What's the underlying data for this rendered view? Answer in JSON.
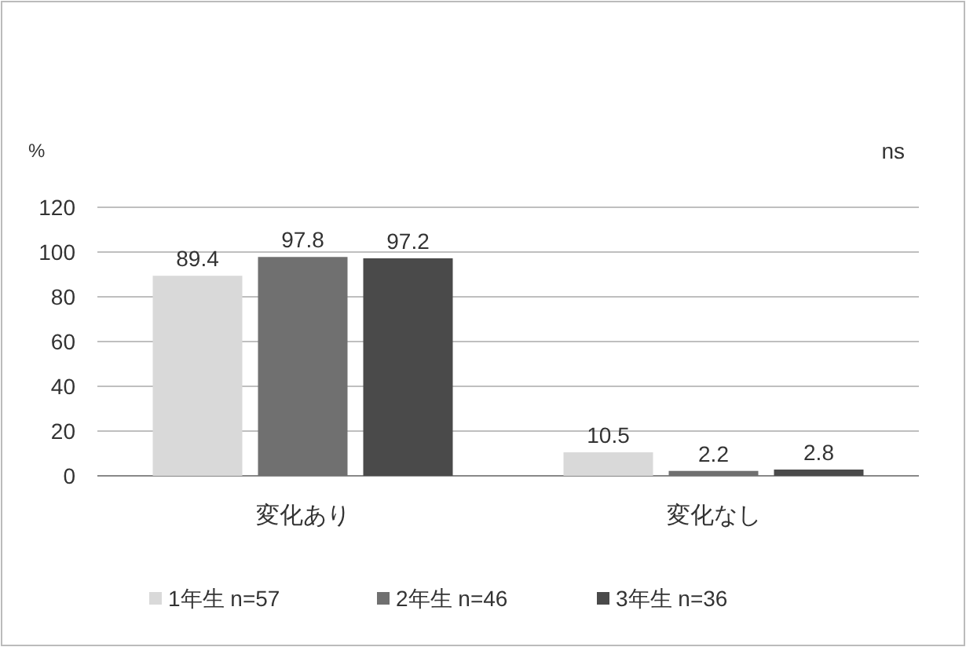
{
  "chart_data": {
    "type": "bar",
    "ylabel": "%",
    "annotations": [
      "ns"
    ],
    "categories": [
      "変化あり",
      "変化なし"
    ],
    "series": [
      {
        "name": "1年生 n=57",
        "color": "#d9d9d9",
        "values": [
          89.4,
          10.5
        ]
      },
      {
        "name": "2年生 n=46",
        "color": "#707070",
        "values": [
          97.8,
          2.2
        ]
      },
      {
        "name": "3年生 n=36",
        "color": "#4a4a4a",
        "values": [
          97.2,
          2.8
        ]
      }
    ],
    "ylim": [
      0,
      120
    ],
    "yticks": [
      0,
      20,
      40,
      60,
      80,
      100,
      120
    ],
    "grid": "y",
    "legend": "bottom",
    "data_labels": true
  }
}
